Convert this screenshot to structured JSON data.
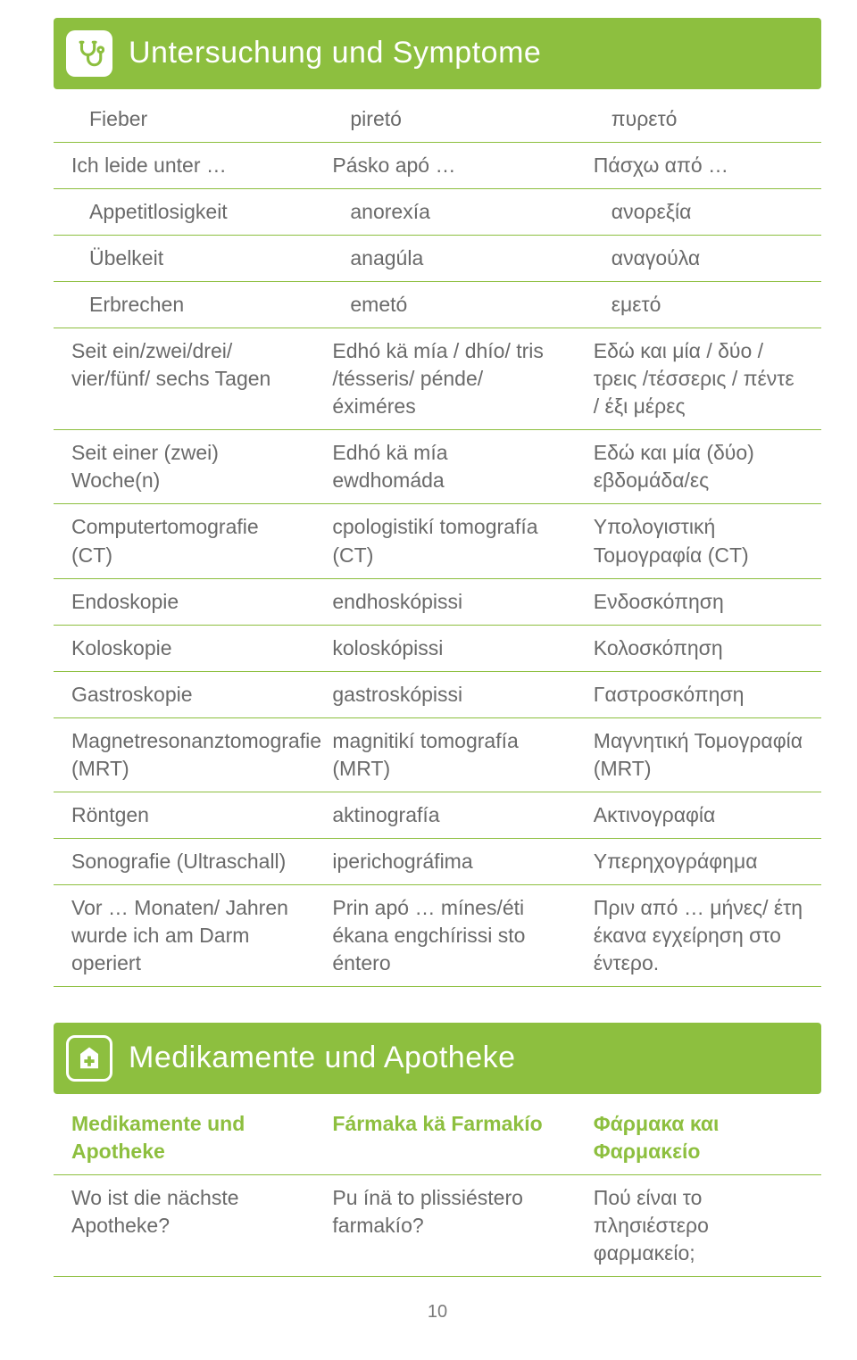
{
  "colors": {
    "green": "#8dbf3f",
    "text": "#6a6a6a",
    "white": "#ffffff"
  },
  "section1": {
    "title": "Untersuchung und Symptome",
    "rows": [
      {
        "indent": true,
        "c1": "Fieber",
        "c2": "piretó",
        "c3": "πυρετό"
      },
      {
        "indent": false,
        "c1": "Ich leide unter …",
        "c2": "Pásko apó …",
        "c3": "Πάσχω από …"
      },
      {
        "indent": true,
        "c1": "Appetitlosigkeit",
        "c2": "anorexía",
        "c3": "ανορεξία"
      },
      {
        "indent": true,
        "c1": "Übelkeit",
        "c2": "anagúla",
        "c3": "αναγούλα"
      },
      {
        "indent": true,
        "c1": "Erbrechen",
        "c2": "emetó",
        "c3": "εμετό"
      },
      {
        "indent": false,
        "c1": "Seit ein/zwei/drei/ vier/fünf/ sechs Tagen",
        "c2": "Edhó kä mía / dhío/ tris /tésseris/ pénde/ éximéres",
        "c3": "Εδώ και μία / δύο / τρεις /τέσσερις / πέντε / έξι μέρες"
      },
      {
        "indent": false,
        "c1": "Seit einer (zwei) Woche(n)",
        "c2": "Edhó kä mía ewdhomáda",
        "c3": "Εδώ και μία (δύο) εβδομάδα/ες"
      },
      {
        "indent": false,
        "c1": "Computertomografie (CT)",
        "c2": "cpologistikí tomografía (CT)",
        "c3": "Υπολογιστική Τομογραφία (CT)"
      },
      {
        "indent": false,
        "c1": "Endoskopie",
        "c2": "endhoskópissi",
        "c3": "Ενδοσκόπηση"
      },
      {
        "indent": false,
        "c1": "Koloskopie",
        "c2": "koloskópissi",
        "c3": "Κολοσκόπηση"
      },
      {
        "indent": false,
        "c1": "Gastroskopie",
        "c2": "gastroskópissi",
        "c3": "Γαστροσκόπηση"
      },
      {
        "indent": false,
        "c1": "Magnetresonanztomografie (MRT)",
        "c2": "magnitikí tomografía (MRT)",
        "c3": "Μαγνητική Τομογραφία (MRT)"
      },
      {
        "indent": false,
        "c1": "Röntgen",
        "c2": "aktinografía",
        "c3": "Ακτινογραφία"
      },
      {
        "indent": false,
        "c1": "Sonografie (Ultraschall)",
        "c2": "iperichográfima",
        "c3": "Υπερηχογράφημα"
      },
      {
        "indent": false,
        "c1": "Vor … Monaten/ Jahren wurde ich am Darm operiert",
        "c2": "Prin apó … mínes/éti ékana engchírissi sto éntero",
        "c3": "Πριν από … μήνες/ έτη έκανα εγχείρηση στο έντερο."
      }
    ]
  },
  "section2": {
    "title": "Medikamente und Apotheke",
    "heading": {
      "c1": "Medikamente und Apotheke",
      "c2": "Fármaka kä Farmakío",
      "c3": "Φάρμακα και Φαρμακείο"
    },
    "rows": [
      {
        "c1": "Wo ist die nächste Apotheke?",
        "c2": "Pu ínä to plissiéstero farmakío?",
        "c3": "Πού είναι το πλησιέστερο φαρμακείο;"
      }
    ]
  },
  "pageNumber": "10"
}
